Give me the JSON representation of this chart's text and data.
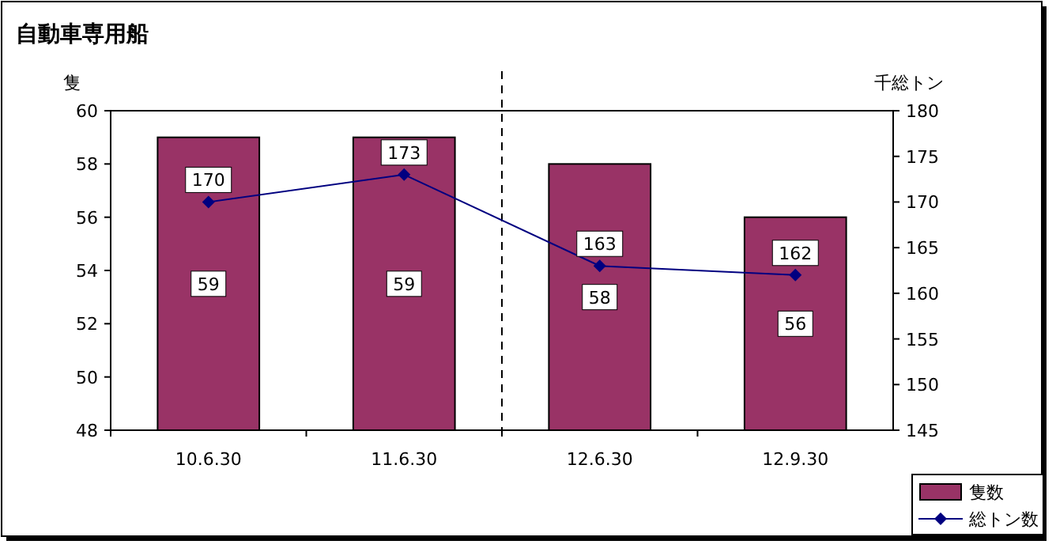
{
  "chart_data": {
    "type": "bar",
    "title": "自動車専用船",
    "ylabel": "隻",
    "y2label": "千総トン",
    "categories": [
      "10.6.30",
      "11.6.30",
      "12.6.30",
      "12.9.30"
    ],
    "series": [
      {
        "name": "隻数",
        "color": "#993366",
        "values": [
          59,
          59,
          58,
          56
        ]
      },
      {
        "name": "総トン数",
        "type": "line",
        "axis": "y2",
        "color": "#000080",
        "marker": "diamond",
        "values": [
          170,
          173,
          163,
          162
        ]
      }
    ],
    "ylim": [
      48,
      60
    ],
    "yticks": [
      48,
      50,
      52,
      54,
      56,
      58,
      60
    ],
    "y2lim": [
      145,
      180
    ],
    "y2ticks": [
      145,
      150,
      155,
      160,
      165,
      170,
      175,
      180
    ],
    "data_labels": true,
    "legend": "bottom right",
    "grid": false
  }
}
